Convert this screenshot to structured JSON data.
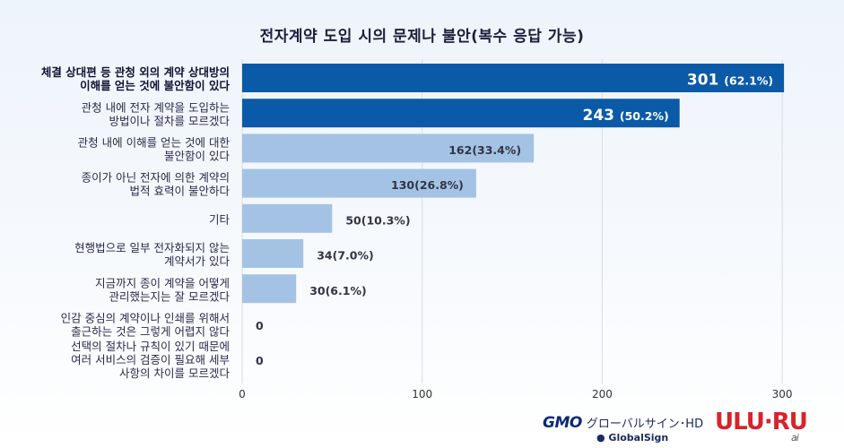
{
  "chart_data": {
    "type": "bar",
    "orientation": "horizontal",
    "title": "전자계약 도입 시의 문제나 불안(복수 응답 가능)",
    "categories": [
      [
        "체결 상대편 등 관청 외의 계약 상대방의",
        "이해를 얻는 것에 불안함이 있다"
      ],
      [
        "관청 내에 전자 계약을 도입하는",
        "방법이나 절차를 모르겠다"
      ],
      [
        "관청 내에 이해를 얻는 것에 대한",
        "불안함이 있다"
      ],
      [
        "종이가 아닌 전자에 의한 계약의",
        "법적 효력이 불안하다"
      ],
      [
        "기타"
      ],
      [
        "현행법으로 일부 전자화되지 않는",
        "계약서가 있다"
      ],
      [
        "지금까지 종이 계약을 어떻게",
        "관리했는지는 잘 모르겠다"
      ],
      [
        "인감 중심의 계약이나 인쇄를 위해서",
        "출근하는 것은 그렇게 어렵지 않다"
      ],
      [
        "선택의 절차나 규칙이 있기 때문에",
        "여러 서비스의 검증이 필요해 세부",
        "사항의 차이를 모르겠다"
      ]
    ],
    "values": [
      301,
      243,
      162,
      130,
      50,
      34,
      30,
      0,
      0
    ],
    "percent_labels": [
      "62.1%",
      "50.2%",
      "33.4%",
      "26.8%",
      "10.3%",
      "7.0%",
      "6.1%",
      "",
      ""
    ],
    "xlim": [
      0,
      300
    ],
    "xticks": [
      0,
      100,
      200,
      300
    ],
    "grid": true,
    "legend": "none",
    "colors": {
      "highlight": "#0a5aa8",
      "normal": "#a4c3e4",
      "highlight_text": "#ffffff",
      "normal_text": "#333344",
      "grid": "#d6dde6"
    },
    "highlight_count": 2
  },
  "footer": {
    "gmo_mark": "GMO",
    "gmo_rest": "グローバルサイン･HD",
    "gmo_sub": "● GlobalSign",
    "ulu": "ULU·RU",
    "ulu_ai": "ai"
  }
}
